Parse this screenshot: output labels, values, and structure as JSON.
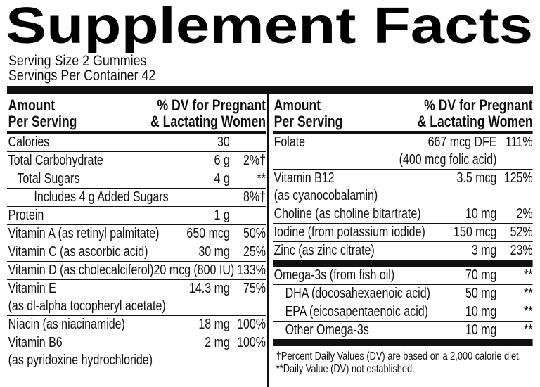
{
  "title": "Supplement Facts",
  "serving_size": "Serving Size 2 Gummies",
  "servings_per_container": "Servings Per Container 42",
  "left": {
    "header": {
      "amount": [
        "Amount",
        "Per Serving"
      ],
      "dv": [
        "% DV for Pregnant",
        "& Lactating Women"
      ]
    },
    "rows": [
      {
        "name": [
          "Calories"
        ],
        "amount": [
          "30"
        ],
        "dv": []
      },
      {
        "name": [
          "Total Carbohydrate"
        ],
        "amount": [
          "6 g"
        ],
        "dv": [
          "2%†"
        ]
      },
      {
        "name": [
          "Total Sugars"
        ],
        "amount": [
          "4 g"
        ],
        "dv": [
          "**"
        ]
      },
      {
        "name": [
          "Includes 4 g Added Sugars"
        ],
        "amount": [],
        "dv": [
          "8%†"
        ]
      },
      {
        "name": [
          "Protein"
        ],
        "amount": [
          "1 g"
        ],
        "dv": []
      },
      {
        "name": [
          "Vitamin A (as retinyl palmitate)"
        ],
        "amount": [
          "650 mcg"
        ],
        "dv": [
          "50%"
        ]
      },
      {
        "name": [
          "Vitamin C (as ascorbic acid)"
        ],
        "amount": [
          "30 mg"
        ],
        "dv": [
          "25%"
        ]
      },
      {
        "name": [
          "Vitamin D (as cholecalciferol)"
        ],
        "amount": [
          "20 mcg (800 IU)"
        ],
        "dv": [
          "133%"
        ]
      },
      {
        "name": [
          "Vitamin E",
          "(as dl-alpha tocopheryl acetate)"
        ],
        "amount": [
          "14.3 mg"
        ],
        "dv": [
          "75%"
        ]
      },
      {
        "name": [
          "Niacin (as niacinamide)"
        ],
        "amount": [
          "18 mg"
        ],
        "dv": [
          "100%"
        ]
      },
      {
        "name": [
          "Vitamin B6",
          "(as pyridoxine hydrochloride)"
        ],
        "amount": [
          "2 mg"
        ],
        "dv": [
          "100%"
        ]
      }
    ]
  },
  "right": {
    "header": {
      "amount": [
        "Amount",
        "Per Serving"
      ],
      "dv": [
        "% DV for Pregnant",
        "& Lactating Women"
      ]
    },
    "rows": [
      {
        "name": [
          "Folate"
        ],
        "amount": [
          "667 mcg DFE",
          "(400 mcg folic acid)"
        ],
        "dv": [
          "111%"
        ]
      },
      {
        "name": [
          "Vitamin B12",
          "(as cyanocobalamin)"
        ],
        "amount": [
          "3.5 mcg"
        ],
        "dv": [
          "125%"
        ]
      },
      {
        "name": [
          "Choline (as choline bitartrate)"
        ],
        "amount": [
          "10 mg"
        ],
        "dv": [
          "2%"
        ]
      },
      {
        "name": [
          "Iodine (from potassium iodide)"
        ],
        "amount": [
          "150 mcg"
        ],
        "dv": [
          "52%"
        ]
      },
      {
        "name": [
          "Zinc (as zinc citrate)"
        ],
        "amount": [
          "3 mg"
        ],
        "dv": [
          "23%"
        ]
      },
      {
        "name": [
          "Omega-3s (from fish oil)"
        ],
        "amount": [
          "70 mg"
        ],
        "dv": [
          "**"
        ]
      },
      {
        "name": [
          "DHA (docosahexaenoic acid)"
        ],
        "amount": [
          "50 mg"
        ],
        "dv": [
          "**"
        ]
      },
      {
        "name": [
          "EPA (eicosapentaenoic acid)"
        ],
        "amount": [
          "10 mg"
        ],
        "dv": [
          "**"
        ]
      },
      {
        "name": [
          "Other Omega-3s"
        ],
        "amount": [
          "10 mg"
        ],
        "dv": [
          "**"
        ]
      }
    ]
  },
  "footnotes": [
    "†Percent Daily Values (DV) are based on a 2,000 calorie diet.",
    "**Daily Value (DV) not established."
  ]
}
